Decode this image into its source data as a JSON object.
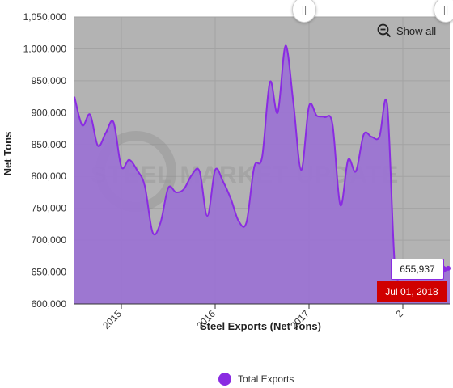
{
  "chart_data": {
    "type": "area",
    "title": "",
    "xlabel": "Steel Exports (Net Tons)",
    "ylabel": "Net Tons",
    "ylim": [
      600000,
      1050000
    ],
    "y_ticks": [
      "600,000",
      "650,000",
      "700,000",
      "750,000",
      "800,000",
      "850,000",
      "900,000",
      "950,000",
      "1,000,000",
      "1,050,000"
    ],
    "x_ticks": [
      "2015",
      "2016",
      "2017",
      "2"
    ],
    "grid": true,
    "legend_position": "bottom-center",
    "series": [
      {
        "name": "Total Exports",
        "color": "#8a2be2",
        "fill": "#9b72d4",
        "x": [
          "2014-07",
          "2014-08",
          "2014-09",
          "2014-10",
          "2014-11",
          "2014-12",
          "2015-01",
          "2015-02",
          "2015-03",
          "2015-04",
          "2015-05",
          "2015-06",
          "2015-07",
          "2015-08",
          "2015-09",
          "2015-10",
          "2015-11",
          "2015-12",
          "2016-01",
          "2016-02",
          "2016-03",
          "2016-04",
          "2016-05",
          "2016-06",
          "2016-07",
          "2016-08",
          "2016-09",
          "2016-10",
          "2016-11",
          "2016-12",
          "2017-01",
          "2017-02",
          "2017-03",
          "2017-04",
          "2017-05",
          "2017-06",
          "2017-07",
          "2017-08",
          "2017-09",
          "2017-10",
          "2017-11",
          "2017-12",
          "2018-01",
          "2018-02",
          "2018-03",
          "2018-04",
          "2018-05",
          "2018-06",
          "2018-07"
        ],
        "values": [
          925000,
          880000,
          897000,
          848000,
          868000,
          885000,
          815000,
          826000,
          810000,
          785000,
          712000,
          727000,
          782000,
          775000,
          780000,
          802000,
          808000,
          738000,
          810000,
          792000,
          765000,
          730000,
          728000,
          815000,
          830000,
          948000,
          900000,
          1005000,
          915000,
          810000,
          910000,
          895000,
          893000,
          882000,
          755000,
          826000,
          808000,
          866000,
          862000,
          862000,
          912000,
          655937,
          655937,
          655937,
          655937,
          655937,
          655937,
          655937,
          655937
        ]
      }
    ],
    "annotations": {
      "tooltip_value": "655,937",
      "date_flag": "Jul 01, 2018",
      "watermark": "STEEL MARKET UPDATE"
    }
  },
  "controls": {
    "show_all_label": "Show all",
    "left_handle_glyph": "||",
    "right_handle_glyph": "||"
  },
  "legend": {
    "label": "Total Exports"
  }
}
